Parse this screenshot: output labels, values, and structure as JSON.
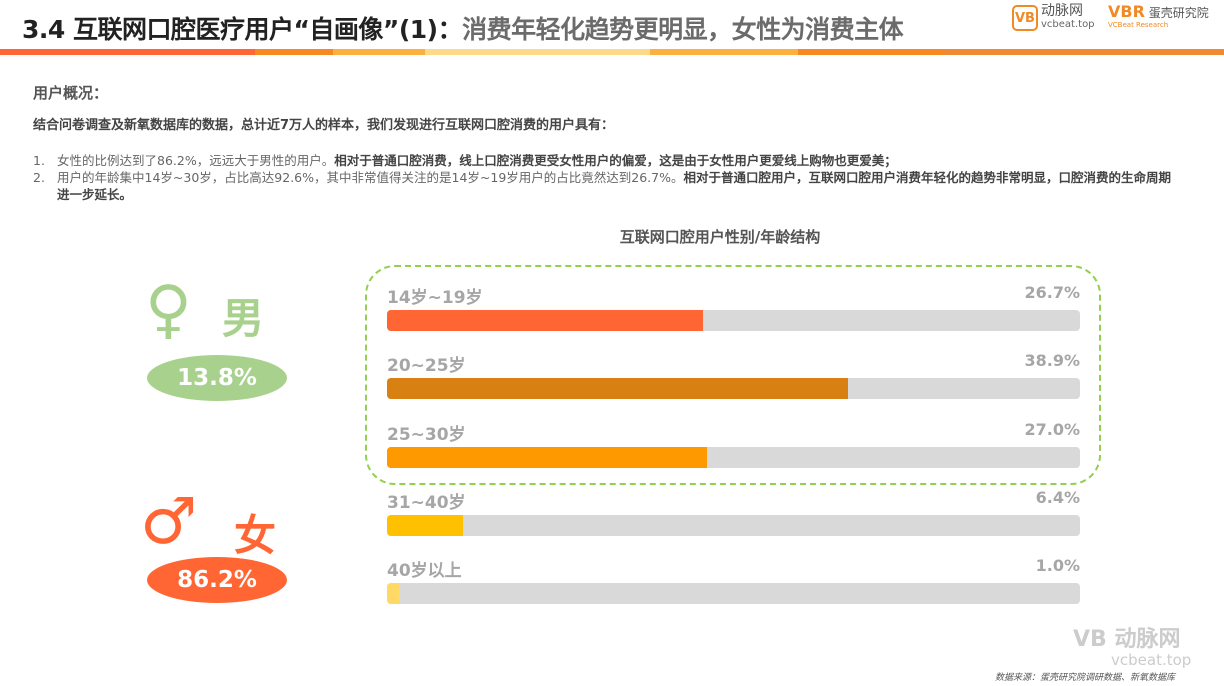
{
  "header": {
    "title_part1": "3.4 互联网口腔医疗用户“自画像”(1)：",
    "title_part2": "消费年轻化趋势更明显，女性为消费主体",
    "logo1_name": "动脉网",
    "logo1_url": "vcbeat.top",
    "logo1_mark": "VB",
    "logo2_mark": "VBR",
    "logo2_name": "蛋壳研究院",
    "logo2_sub": "VCBeat Research",
    "stripe_colors": [
      "#ff6633",
      "#f6891f",
      "#fbb040",
      "#fdd98a",
      "#fbb040",
      "#f6891f",
      "#f08a30"
    ]
  },
  "intro": {
    "heading": "用户概况：",
    "summary": "结合问卷调查及新氧数据库的数据，总计近7万人的样本，我们发现进行互联网口腔消费的用户具有：",
    "items": [
      {
        "num": "1.",
        "normal": "女性的比例达到了86.2%，远远大于男性的用户。",
        "bold": "相对于普通口腔消费，线上口腔消费更受女性用户的偏爱，这是由于女性用户更爱线上购物也更爱美；",
        "normal2": ""
      },
      {
        "num": "2.",
        "normal": "用户的年龄集中14岁~30岁，占比高达92.6%，其中非常值得关注的是14岁~19岁用户的占比竟然达到26.7%。",
        "bold": "相对于普通口腔用户，互联网口腔用户消费年轻化的趋势非常明显，口腔消费的生命周期进一步延长。",
        "normal2": ""
      }
    ]
  },
  "gender": {
    "male": {
      "label": "男",
      "symbol": "♀",
      "percent": "13.8%",
      "color": "#a9d18e"
    },
    "female": {
      "label": "女",
      "symbol": "♂",
      "percent": "86.2%",
      "color": "#ff6633"
    }
  },
  "chart_data": {
    "type": "bar",
    "title": "互联网口腔用户性别/年龄结构",
    "categories": [
      "14岁~19岁",
      "20~25岁",
      "25~30岁",
      "31~40岁",
      "40岁以上"
    ],
    "values": [
      26.7,
      38.9,
      27.0,
      6.4,
      1.0
    ],
    "labels": [
      "26.7%",
      "38.9%",
      "27.0%",
      "6.4%",
      "1.0%"
    ],
    "colors": [
      "#ff6633",
      "#d98012",
      "#ff9900",
      "#ffc000",
      "#ffd966"
    ],
    "highlighted": [
      "14岁~19岁",
      "20~25岁",
      "25~30岁"
    ]
  },
  "footer": {
    "source": "数据来源：蛋壳研究院调研数据、新氧数据库",
    "watermark_name": "动脉网",
    "watermark_url": "vcbeat.top",
    "watermark_mark": "VB"
  }
}
